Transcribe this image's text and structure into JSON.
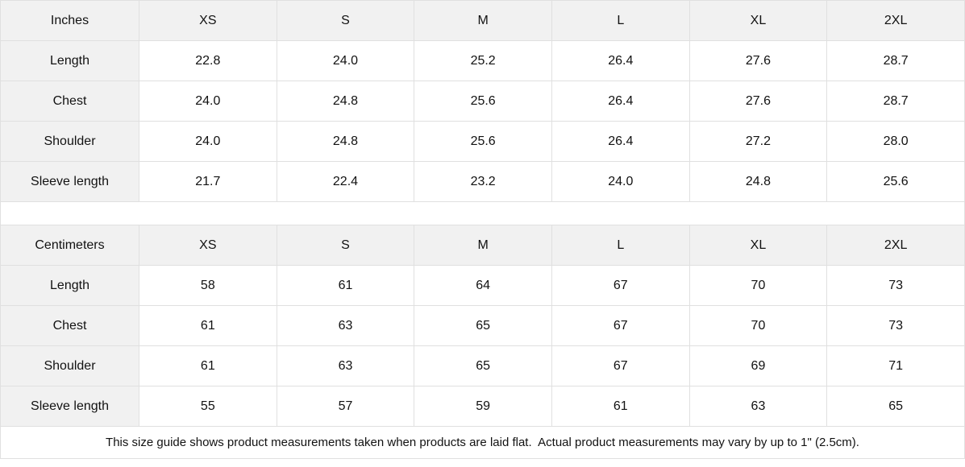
{
  "tables": [
    {
      "unit_label": "Inches",
      "columns": [
        "XS",
        "S",
        "M",
        "L",
        "XL",
        "2XL"
      ],
      "rows": [
        {
          "label": "Length",
          "values": [
            "22.8",
            "24.0",
            "25.2",
            "26.4",
            "27.6",
            "28.7"
          ]
        },
        {
          "label": "Chest",
          "values": [
            "24.0",
            "24.8",
            "25.6",
            "26.4",
            "27.6",
            "28.7"
          ]
        },
        {
          "label": "Shoulder",
          "values": [
            "24.0",
            "24.8",
            "25.6",
            "26.4",
            "27.2",
            "28.0"
          ]
        },
        {
          "label": "Sleeve length",
          "values": [
            "21.7",
            "22.4",
            "23.2",
            "24.0",
            "24.8",
            "25.6"
          ]
        }
      ]
    },
    {
      "unit_label": "Centimeters",
      "columns": [
        "XS",
        "S",
        "M",
        "L",
        "XL",
        "2XL"
      ],
      "rows": [
        {
          "label": "Length",
          "values": [
            "58",
            "61",
            "64",
            "67",
            "70",
            "73"
          ]
        },
        {
          "label": "Chest",
          "values": [
            "61",
            "63",
            "65",
            "67",
            "70",
            "73"
          ]
        },
        {
          "label": "Shoulder",
          "values": [
            "61",
            "63",
            "65",
            "67",
            "69",
            "71"
          ]
        },
        {
          "label": "Sleeve length",
          "values": [
            "55",
            "57",
            "59",
            "61",
            "63",
            "65"
          ]
        }
      ]
    }
  ],
  "footer": {
    "note": "This size guide shows product measurements taken when products are laid flat.  Actual product measurements may vary by up to 1\" (2.5cm)."
  },
  "colors": {
    "header_bg": "#f1f1f1",
    "border": "#e0e0e0",
    "text": "#121212"
  }
}
